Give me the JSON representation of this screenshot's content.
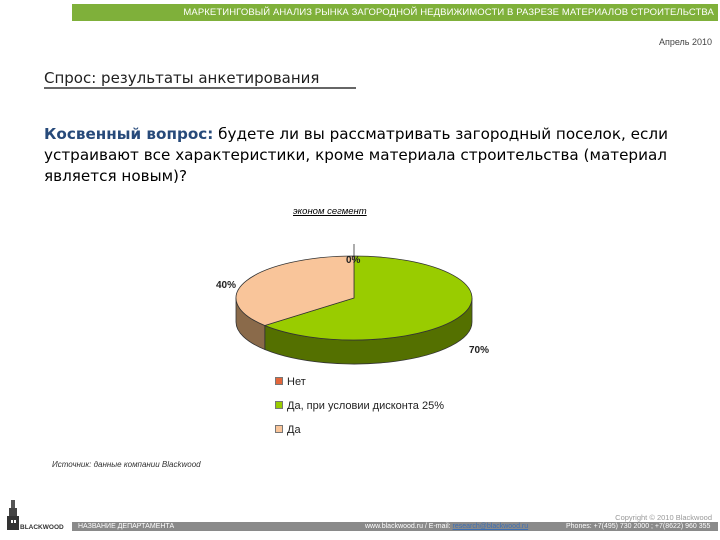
{
  "header": {
    "title": "МАРКЕТИНГОВЫЙ АНАЛИЗ РЫНКА ЗАГОРОДНОЙ НЕДВИЖИМОСТИ В РАЗРЕЗЕ МАТЕРИАЛОВ СТРОИТЕЛЬСТВА",
    "date": "Апрель 2010",
    "accent_color": "#7fb03a"
  },
  "section": {
    "title": "Спрос: результаты анкетирования"
  },
  "question": {
    "prefix": "Косвенный вопрос:",
    "text": " будете ли вы рассматривать загородный поселок, если устраивают все характеристики, кроме материала строительства (материал является новым)?"
  },
  "chart_data": {
    "type": "pie",
    "title": "эконом сегмент",
    "style": "3d",
    "slices": [
      {
        "label": "Нет",
        "value": 0,
        "display": "0%",
        "color": "#e3663b"
      },
      {
        "label": "Да, при условии дисконта 25%",
        "value": 70,
        "display": "70%",
        "color": "#99cc00"
      },
      {
        "label": "Да",
        "value": 40,
        "display": "40%",
        "color": "#f9c59a"
      }
    ],
    "legend_position": "bottom"
  },
  "source": "Источник: данные компании Blackwood",
  "footer": {
    "copyright": "Copyright © 2010 Blackwood",
    "department": "НАЗВАНИЕ ДЕПАРТАМЕНТА",
    "web": "www.blackwood.ru / E-mail:",
    "email": "research@blackwood.ru",
    "phones": "Phones: +7(495) 730 2000 ; +7(8622) 960 355",
    "logo_text": "BLACKWOOD"
  }
}
